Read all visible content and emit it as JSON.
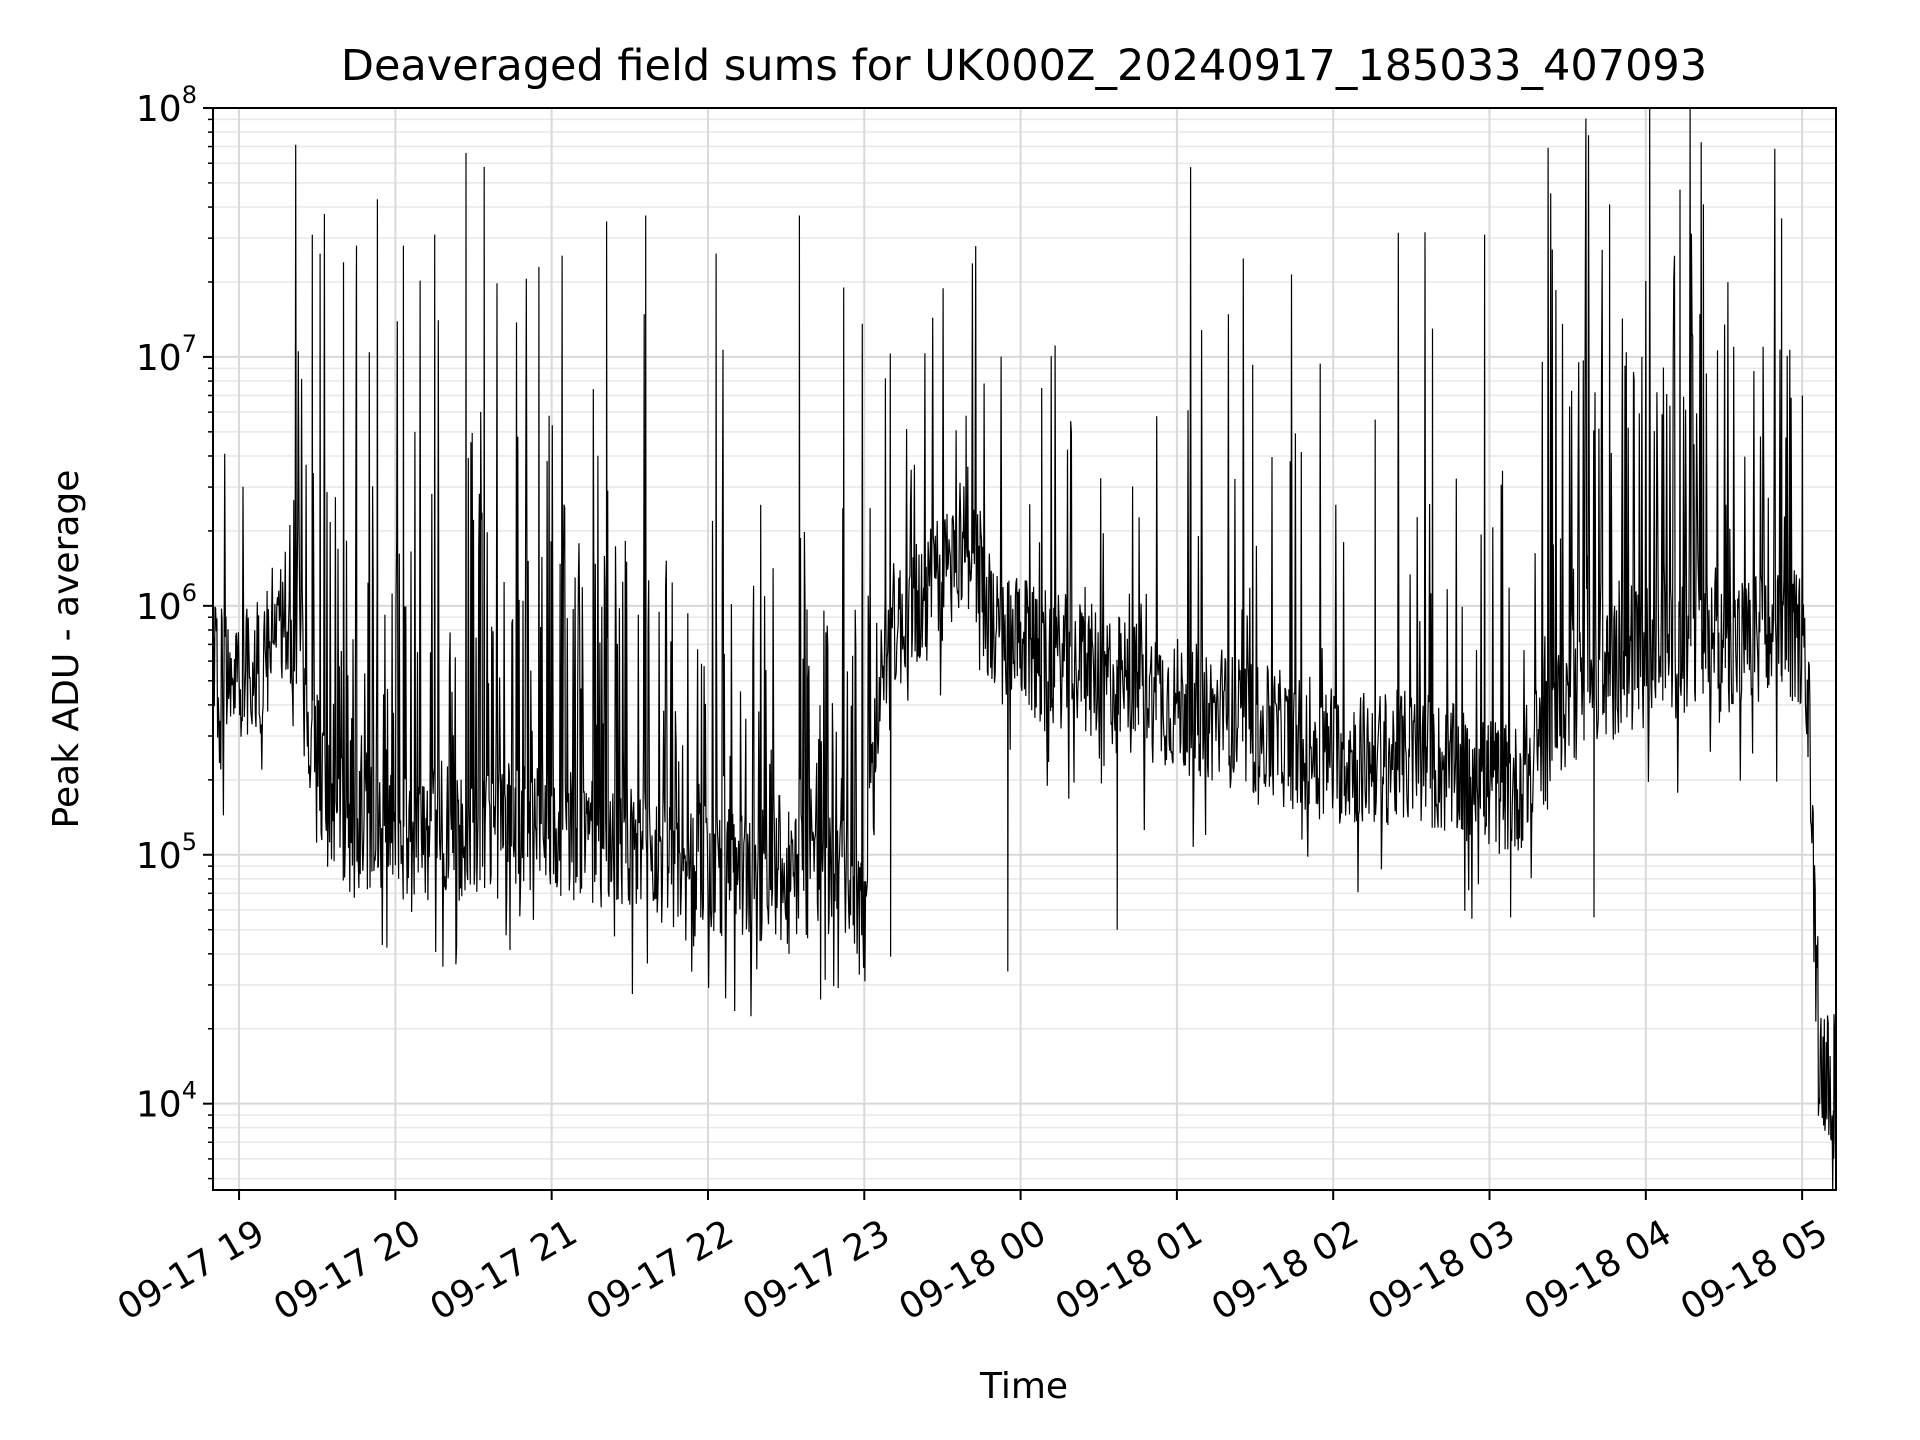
{
  "chart_data": {
    "type": "line",
    "title": "Deaveraged field sums for UK000Z_20240917_185033_407093",
    "xlabel": "Time",
    "ylabel": "Peak ADU - average",
    "yscale": "log",
    "ylim": [
      4500,
      100000000
    ],
    "xlim": [
      "2024-09-17 18:50",
      "2024-09-18 05:13"
    ],
    "grid": true,
    "line_color": "#000000",
    "x_ticks": [
      {
        "time": "2024-09-17 19:00",
        "label": "09-17 19"
      },
      {
        "time": "2024-09-17 20:00",
        "label": "09-17 20"
      },
      {
        "time": "2024-09-17 21:00",
        "label": "09-17 21"
      },
      {
        "time": "2024-09-17 22:00",
        "label": "09-17 22"
      },
      {
        "time": "2024-09-17 23:00",
        "label": "09-17 23"
      },
      {
        "time": "2024-09-18 00:00",
        "label": "09-18 00"
      },
      {
        "time": "2024-09-18 01:00",
        "label": "09-18 01"
      },
      {
        "time": "2024-09-18 02:00",
        "label": "09-18 02"
      },
      {
        "time": "2024-09-18 03:00",
        "label": "09-18 03"
      },
      {
        "time": "2024-09-18 04:00",
        "label": "09-18 04"
      },
      {
        "time": "2024-09-18 05:00",
        "label": "09-18 05"
      }
    ],
    "y_ticks": [
      {
        "value": 10000,
        "base": "10",
        "exp": "4"
      },
      {
        "value": 100000,
        "base": "10",
        "exp": "5"
      },
      {
        "value": 1000000,
        "base": "10",
        "exp": "6"
      },
      {
        "value": 10000000,
        "base": "10",
        "exp": "7"
      },
      {
        "value": 100000000,
        "base": "10",
        "exp": "8"
      }
    ],
    "series": [
      {
        "baseline": [
          {
            "time": "2024-09-17 18:50",
            "value": 500000
          },
          {
            "time": "2024-09-17 19:10",
            "value": 520000
          },
          {
            "time": "2024-09-17 19:15",
            "value": 1000000
          },
          {
            "time": "2024-09-17 19:25",
            "value": 500000
          },
          {
            "time": "2024-09-17 19:30",
            "value": 180000
          },
          {
            "time": "2024-09-17 19:40",
            "value": 120000
          },
          {
            "time": "2024-09-17 20:00",
            "value": 110000
          },
          {
            "time": "2024-09-17 21:00",
            "value": 120000
          },
          {
            "time": "2024-09-17 21:40",
            "value": 90000
          },
          {
            "time": "2024-09-17 22:00",
            "value": 80000
          },
          {
            "time": "2024-09-17 23:00",
            "value": 70000
          },
          {
            "time": "2024-09-17 23:08",
            "value": 700000
          },
          {
            "time": "2024-09-17 23:30",
            "value": 1200000
          },
          {
            "time": "2024-09-17 23:40",
            "value": 2000000
          },
          {
            "time": "2024-09-17 23:50",
            "value": 700000
          },
          {
            "time": "2024-09-18 00:30",
            "value": 500000
          },
          {
            "time": "2024-09-18 01:00",
            "value": 380000
          },
          {
            "time": "2024-09-18 01:30",
            "value": 300000
          },
          {
            "time": "2024-09-18 02:00",
            "value": 230000
          },
          {
            "time": "2024-09-18 02:30",
            "value": 230000
          },
          {
            "time": "2024-09-18 03:00",
            "value": 180000
          },
          {
            "time": "2024-09-18 03:10",
            "value": 170000
          },
          {
            "time": "2024-09-18 03:30",
            "value": 400000
          },
          {
            "time": "2024-09-18 04:00",
            "value": 600000
          },
          {
            "time": "2024-09-18 04:55",
            "value": 700000
          },
          {
            "time": "2024-09-18 05:00",
            "value": 700000
          },
          {
            "time": "2024-09-18 05:03",
            "value": 300000
          },
          {
            "time": "2024-09-18 05:06",
            "value": 14000
          },
          {
            "time": "2024-09-18 05:13",
            "value": 12000
          }
        ],
        "peaks": [
          {
            "time": "2024-09-17 19:28",
            "value": 31000000
          },
          {
            "time": "2024-09-17 19:31",
            "value": 26000000
          },
          {
            "time": "2024-09-17 19:40",
            "value": 24000000
          },
          {
            "time": "2024-09-17 19:45",
            "value": 28000000
          },
          {
            "time": "2024-09-17 19:53",
            "value": 43000000
          },
          {
            "time": "2024-09-17 20:03",
            "value": 28000000
          },
          {
            "time": "2024-09-17 20:15",
            "value": 31000000
          },
          {
            "time": "2024-09-17 20:27",
            "value": 66000000
          },
          {
            "time": "2024-09-17 20:34",
            "value": 58000000
          },
          {
            "time": "2024-09-17 20:55",
            "value": 23000000
          },
          {
            "time": "2024-09-17 21:21",
            "value": 35000000
          },
          {
            "time": "2024-09-17 21:36",
            "value": 37000000
          },
          {
            "time": "2024-09-17 22:03",
            "value": 26000000
          },
          {
            "time": "2024-09-17 22:35",
            "value": 37000000
          },
          {
            "time": "2024-09-17 22:52",
            "value": 19000000
          },
          {
            "time": "2024-09-17 23:08",
            "value": 8200000
          },
          {
            "time": "2024-09-17 23:39",
            "value": 5800000
          },
          {
            "time": "2024-09-18 00:08",
            "value": 7500000
          },
          {
            "time": "2024-09-18 01:29",
            "value": 9300000
          },
          {
            "time": "2024-09-18 02:16",
            "value": 5600000
          },
          {
            "time": "2024-09-18 02:38",
            "value": 13000000
          },
          {
            "time": "2024-09-18 02:58",
            "value": 31000000
          },
          {
            "time": "2024-09-18 03:24",
            "value": 27000000
          },
          {
            "time": "2024-09-18 03:46",
            "value": 41000000
          },
          {
            "time": "2024-09-18 04:13",
            "value": 47000000
          },
          {
            "time": "2024-09-18 04:22",
            "value": 41000000
          },
          {
            "time": "2024-09-18 04:52",
            "value": 36000000
          },
          {
            "time": "2024-09-18 05:00",
            "value": 7000000
          }
        ],
        "dips": [
          {
            "time": "2024-09-17 21:24",
            "value": 47000
          },
          {
            "time": "2024-09-17 22:31",
            "value": 40000
          },
          {
            "time": "2024-09-17 22:58",
            "value": 33000
          },
          {
            "time": "2024-09-17 23:10",
            "value": 39000
          },
          {
            "time": "2024-09-17 23:55",
            "value": 34000
          },
          {
            "time": "2024-09-18 00:37",
            "value": 50000
          },
          {
            "time": "2024-09-18 03:08",
            "value": 56000
          },
          {
            "time": "2024-09-18 03:40",
            "value": 56000
          },
          {
            "time": "2024-09-18 05:12",
            "value": 6000
          }
        ]
      }
    ]
  }
}
